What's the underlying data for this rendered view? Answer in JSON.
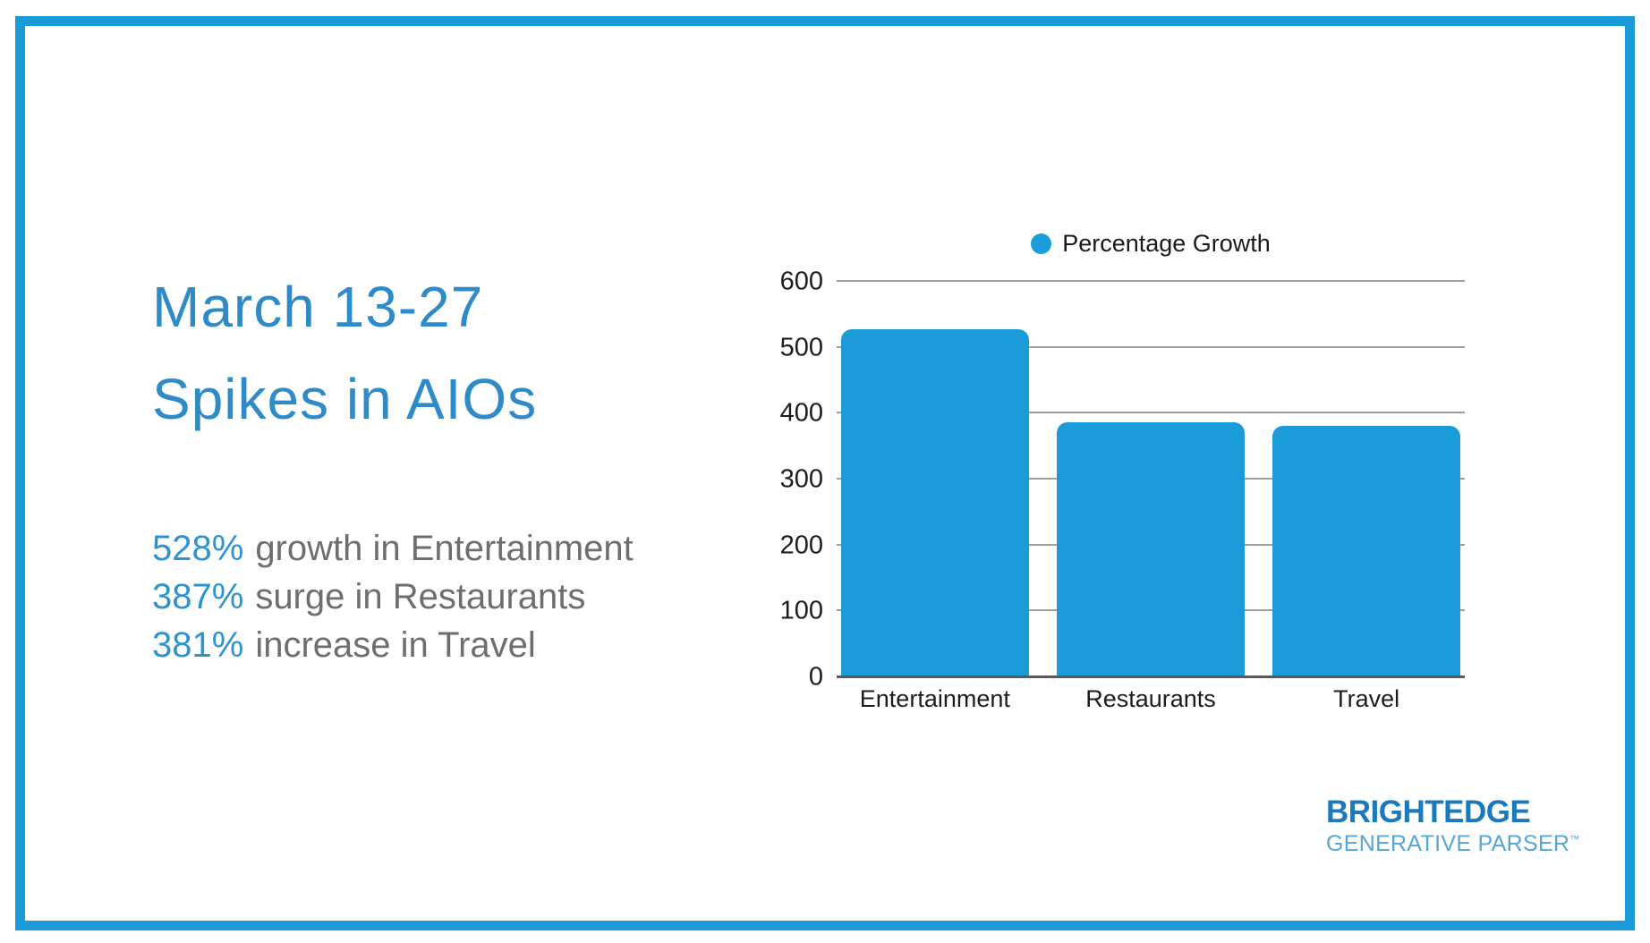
{
  "slide": {
    "title_line1": "March 13-27",
    "title_line2": "Spikes in AIOs",
    "stats": [
      {
        "value": "528%",
        "label": "growth in Entertainment"
      },
      {
        "value": "387%",
        "label": "surge in Restaurants"
      },
      {
        "value": "381%",
        "label": "increase in Travel"
      }
    ]
  },
  "chart_data": {
    "type": "bar",
    "title": "",
    "xlabel": "",
    "ylabel": "",
    "categories": [
      "Entertainment",
      "Restaurants",
      "Travel"
    ],
    "values": [
      528,
      387,
      381
    ],
    "ylim": [
      0,
      600
    ],
    "yticks": [
      0,
      100,
      200,
      300,
      400,
      500,
      600
    ],
    "grid": "horizontal",
    "legend": {
      "label": "Percentage Growth",
      "position": "top-center",
      "marker": "circle"
    },
    "bar_color": "#199cd8"
  },
  "logo": {
    "line1": "BRIGHTEDGE",
    "line2": "GENERATIVE PARSER",
    "tm": "™"
  },
  "colors": {
    "frame": "#1b9ad8",
    "bar": "#199cd8",
    "title": "#2e8bc7",
    "stat-value": "#2e93cf",
    "stat-label": "#6e6e6e",
    "axis-text": "#1d1d1d",
    "grid": "#9e9e9e",
    "baseline": "#5a5a5a",
    "logo-main": "#1a7abc",
    "logo-sub": "#56a7d6"
  }
}
